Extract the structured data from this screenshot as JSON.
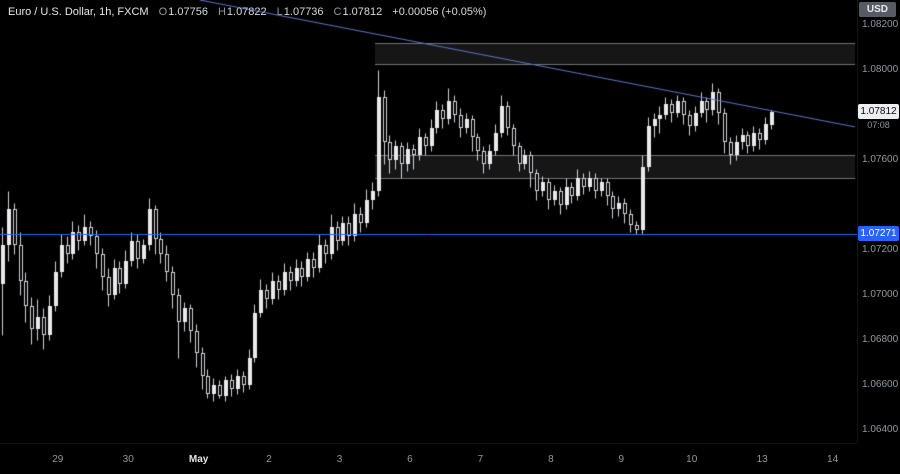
{
  "header": {
    "symbol_title": "Euro / U.S. Dollar, 1h, FXCM",
    "ohlc": {
      "o_label": "O",
      "o": "1.07756",
      "h_label": "H",
      "h": "1.07822",
      "l_label": "L",
      "l": "1.07736",
      "c_label": "C",
      "c": "1.07812",
      "change": "+0.00056 (+0.05%)"
    },
    "currency_button": "USD"
  },
  "colors": {
    "background": "#000000",
    "candle_up": "#e9eaec",
    "candle_down": "#000000",
    "candle_outline": "#cfd2d8",
    "accent_blue": "#2962ff",
    "trendline_blue": "#5d78c7",
    "zone_fill": "rgba(178,181,190,0.12)",
    "zone_border": "rgba(190,193,202,0.55)",
    "axis_text": "#9198a1"
  },
  "chart_data": {
    "type": "candlestick",
    "symbol": "Euro / U.S. Dollar",
    "interval": "1h",
    "exchange": "FXCM",
    "ylim": [
      1.06342,
      1.08311
    ],
    "candles_format": [
      "open",
      "high",
      "low",
      "close"
    ],
    "candles": [
      [
        1.0705,
        1.073,
        1.0682,
        1.0722
      ],
      [
        1.0722,
        1.0746,
        1.0715,
        1.0738
      ],
      [
        1.0738,
        1.0741,
        1.0718,
        1.0722
      ],
      [
        1.0722,
        1.0728,
        1.07,
        1.0706
      ],
      [
        1.0706,
        1.071,
        1.0688,
        1.0695
      ],
      [
        1.0695,
        1.0699,
        1.0678,
        1.0685
      ],
      [
        1.0685,
        1.0698,
        1.068,
        1.069
      ],
      [
        1.069,
        1.0694,
        1.0676,
        1.0682
      ],
      [
        1.0682,
        1.07,
        1.068,
        1.0695
      ],
      [
        1.0695,
        1.0715,
        1.0693,
        1.071
      ],
      [
        1.071,
        1.0727,
        1.0708,
        1.0722
      ],
      [
        1.0722,
        1.0726,
        1.0714,
        1.0718
      ],
      [
        1.0718,
        1.0733,
        1.0716,
        1.0728
      ],
      [
        1.0728,
        1.0731,
        1.072,
        1.0724
      ],
      [
        1.0724,
        1.0736,
        1.0722,
        1.073
      ],
      [
        1.073,
        1.0733,
        1.0722,
        1.0726
      ],
      [
        1.0726,
        1.0729,
        1.0712,
        1.0718
      ],
      [
        1.0718,
        1.0721,
        1.0702,
        1.0708
      ],
      [
        1.0708,
        1.0712,
        1.0695,
        1.07
      ],
      [
        1.07,
        1.0716,
        1.0698,
        1.0712
      ],
      [
        1.0712,
        1.0715,
        1.0701,
        1.0705
      ],
      [
        1.0705,
        1.072,
        1.0703,
        1.0715
      ],
      [
        1.0715,
        1.0728,
        1.0713,
        1.0724
      ],
      [
        1.0724,
        1.0727,
        1.0712,
        1.0716
      ],
      [
        1.0716,
        1.0725,
        1.0714,
        1.0722
      ],
      [
        1.0722,
        1.0743,
        1.072,
        1.0738
      ],
      [
        1.0738,
        1.074,
        1.0718,
        1.0725
      ],
      [
        1.0725,
        1.0728,
        1.0714,
        1.0718
      ],
      [
        1.0718,
        1.0722,
        1.0706,
        1.071
      ],
      [
        1.071,
        1.0713,
        1.0694,
        1.07
      ],
      [
        1.07,
        1.0703,
        1.0672,
        1.0688
      ],
      [
        1.0688,
        1.0697,
        1.0684,
        1.0694
      ],
      [
        1.0694,
        1.0696,
        1.0679,
        1.0684
      ],
      [
        1.0684,
        1.0687,
        1.0668,
        1.0674
      ],
      [
        1.0674,
        1.0677,
        1.0658,
        1.0664
      ],
      [
        1.0664,
        1.0667,
        1.0654,
        1.0656
      ],
      [
        1.0656,
        1.0663,
        1.0653,
        1.066
      ],
      [
        1.066,
        1.0662,
        1.0654,
        1.0655
      ],
      [
        1.0655,
        1.0664,
        1.0653,
        1.0662
      ],
      [
        1.0662,
        1.0665,
        1.0655,
        1.0658
      ],
      [
        1.0658,
        1.0667,
        1.0656,
        1.0664
      ],
      [
        1.0664,
        1.0666,
        1.0657,
        1.066
      ],
      [
        1.066,
        1.0676,
        1.0658,
        1.0672
      ],
      [
        1.0672,
        1.0696,
        1.067,
        1.0692
      ],
      [
        1.0692,
        1.0707,
        1.069,
        1.0702
      ],
      [
        1.0702,
        1.0705,
        1.0694,
        1.0698
      ],
      [
        1.0698,
        1.071,
        1.0696,
        1.0706
      ],
      [
        1.0706,
        1.0709,
        1.0698,
        1.0702
      ],
      [
        1.0702,
        1.0714,
        1.07,
        1.071
      ],
      [
        1.071,
        1.0713,
        1.0702,
        1.0706
      ],
      [
        1.0706,
        1.0716,
        1.0704,
        1.0712
      ],
      [
        1.0712,
        1.0715,
        1.0704,
        1.0708
      ],
      [
        1.0708,
        1.0719,
        1.0706,
        1.0716
      ],
      [
        1.0716,
        1.0719,
        1.0708,
        1.0712
      ],
      [
        1.0712,
        1.0727,
        1.071,
        1.0722
      ],
      [
        1.0722,
        1.0725,
        1.0714,
        1.0718
      ],
      [
        1.0718,
        1.0736,
        1.0716,
        1.073
      ],
      [
        1.073,
        1.0733,
        1.072,
        1.0724
      ],
      [
        1.0724,
        1.0735,
        1.0722,
        1.0732
      ],
      [
        1.0732,
        1.0735,
        1.0722,
        1.0726
      ],
      [
        1.0726,
        1.0741,
        1.0724,
        1.0736
      ],
      [
        1.0736,
        1.0739,
        1.0728,
        1.0732
      ],
      [
        1.0732,
        1.0747,
        1.073,
        1.0742
      ],
      [
        1.0742,
        1.075,
        1.0738,
        1.0746
      ],
      [
        1.0746,
        1.08,
        1.0744,
        1.0788
      ],
      [
        1.0788,
        1.0791,
        1.0758,
        1.0768
      ],
      [
        1.0768,
        1.0771,
        1.0754,
        1.076
      ],
      [
        1.076,
        1.0769,
        1.0756,
        1.0766
      ],
      [
        1.0766,
        1.0768,
        1.0752,
        1.0758
      ],
      [
        1.0758,
        1.0768,
        1.0755,
        1.0765
      ],
      [
        1.0765,
        1.0767,
        1.0756,
        1.0762
      ],
      [
        1.0762,
        1.0774,
        1.076,
        1.077
      ],
      [
        1.077,
        1.0772,
        1.0762,
        1.0766
      ],
      [
        1.0766,
        1.0778,
        1.0764,
        1.0774
      ],
      [
        1.0774,
        1.0786,
        1.0772,
        1.0782
      ],
      [
        1.0782,
        1.0785,
        1.0774,
        1.0778
      ],
      [
        1.0778,
        1.0792,
        1.0776,
        1.0786
      ],
      [
        1.0786,
        1.0789,
        1.0777,
        1.078
      ],
      [
        1.078,
        1.0783,
        1.077,
        1.0774
      ],
      [
        1.0774,
        1.0781,
        1.0772,
        1.0778
      ],
      [
        1.0778,
        1.078,
        1.0764,
        1.077
      ],
      [
        1.077,
        1.0772,
        1.076,
        1.0764
      ],
      [
        1.0764,
        1.0766,
        1.0754,
        1.0758
      ],
      [
        1.0758,
        1.0767,
        1.0756,
        1.0764
      ],
      [
        1.0764,
        1.0776,
        1.0762,
        1.0772
      ],
      [
        1.0772,
        1.0789,
        1.077,
        1.0784
      ],
      [
        1.0784,
        1.0786,
        1.0771,
        1.0774
      ],
      [
        1.0774,
        1.0776,
        1.0762,
        1.0766
      ],
      [
        1.0766,
        1.0768,
        1.0755,
        1.0758
      ],
      [
        1.0758,
        1.0765,
        1.0756,
        1.0762
      ],
      [
        1.0762,
        1.0764,
        1.0748,
        1.0754
      ],
      [
        1.0754,
        1.0756,
        1.0742,
        1.0746
      ],
      [
        1.0746,
        1.0753,
        1.0744,
        1.075
      ],
      [
        1.075,
        1.0752,
        1.0738,
        1.0742
      ],
      [
        1.0742,
        1.0749,
        1.074,
        1.0746
      ],
      [
        1.0746,
        1.0748,
        1.0736,
        1.074
      ],
      [
        1.074,
        1.0752,
        1.0738,
        1.0748
      ],
      [
        1.0748,
        1.075,
        1.0741,
        1.0744
      ],
      [
        1.0744,
        1.0756,
        1.0742,
        1.0752
      ],
      [
        1.0752,
        1.0754,
        1.0745,
        1.0748
      ],
      [
        1.0748,
        1.0755,
        1.0746,
        1.0752
      ],
      [
        1.0752,
        1.0754,
        1.0743,
        1.0746
      ],
      [
        1.0746,
        1.0752,
        1.0744,
        1.075
      ],
      [
        1.075,
        1.0752,
        1.074,
        1.0744
      ],
      [
        1.0744,
        1.0746,
        1.0734,
        1.0738
      ],
      [
        1.0738,
        1.0744,
        1.0735,
        1.0741
      ],
      [
        1.0741,
        1.0743,
        1.0732,
        1.0736
      ],
      [
        1.0736,
        1.0738,
        1.0728,
        1.0731
      ],
      [
        1.0731,
        1.0733,
        1.07271,
        1.0729
      ],
      [
        1.0729,
        1.0762,
        1.0727,
        1.0757
      ],
      [
        1.0757,
        1.0779,
        1.0755,
        1.0775
      ],
      [
        1.0775,
        1.0781,
        1.077,
        1.0778
      ],
      [
        1.0778,
        1.0784,
        1.0772,
        1.078
      ],
      [
        1.078,
        1.0788,
        1.0778,
        1.0785
      ],
      [
        1.0785,
        1.0787,
        1.0777,
        1.0781
      ],
      [
        1.0781,
        1.0789,
        1.0779,
        1.0786
      ],
      [
        1.0786,
        1.0788,
        1.0776,
        1.078
      ],
      [
        1.078,
        1.0782,
        1.0771,
        1.0775
      ],
      [
        1.0775,
        1.0784,
        1.0773,
        1.0781
      ],
      [
        1.0781,
        1.079,
        1.0779,
        1.0786
      ],
      [
        1.0786,
        1.0788,
        1.0777,
        1.0782
      ],
      [
        1.0782,
        1.0794,
        1.078,
        1.079
      ],
      [
        1.079,
        1.0792,
        1.0776,
        1.0781
      ],
      [
        1.0781,
        1.0783,
        1.0763,
        1.0768
      ],
      [
        1.0768,
        1.077,
        1.0758,
        1.0762
      ],
      [
        1.0762,
        1.0771,
        1.076,
        1.0768
      ],
      [
        1.0768,
        1.0774,
        1.0765,
        1.0771
      ],
      [
        1.0771,
        1.0773,
        1.0763,
        1.0766
      ],
      [
        1.0766,
        1.0775,
        1.0764,
        1.0772
      ],
      [
        1.0772,
        1.0774,
        1.0765,
        1.0769
      ],
      [
        1.0769,
        1.0779,
        1.0767,
        1.0776
      ],
      [
        1.07756,
        1.07822,
        1.07736,
        1.07812
      ]
    ],
    "time_axis": [
      {
        "label": "29",
        "index": 9.5
      },
      {
        "label": "30",
        "index": 21.5
      },
      {
        "label": "May",
        "index": 33.5
      },
      {
        "label": "2",
        "index": 45.5
      },
      {
        "label": "3",
        "index": 57.5
      },
      {
        "label": "6",
        "index": 69.5
      },
      {
        "label": "7",
        "index": 81.5
      },
      {
        "label": "8",
        "index": 93.5
      },
      {
        "label": "9",
        "index": 105.5
      },
      {
        "label": "10",
        "index": 117.5
      },
      {
        "label": "13",
        "index": 129.5
      },
      {
        "label": "14",
        "index": 141.5
      }
    ],
    "price_axis_labels": [
      "1.08200",
      "1.08000",
      "1.07600",
      "1.07200",
      "1.07000",
      "1.06800",
      "1.06600",
      "1.06400"
    ],
    "last_price_label": {
      "price": "1.07812",
      "countdown": "07:08"
    },
    "horizontal_line": {
      "price": 1.07271,
      "label": "1.07271"
    },
    "trendline": {
      "from": {
        "index": 33.7,
        "price": 1.08311
      },
      "to": {
        "index": 145.3,
        "price": 1.07747
      }
    },
    "zones": [
      {
        "top": 1.0812,
        "bottom": 1.0802,
        "start_index": 64
      },
      {
        "top": 1.0762,
        "bottom": 1.07516,
        "start_index": 64
      }
    ]
  }
}
